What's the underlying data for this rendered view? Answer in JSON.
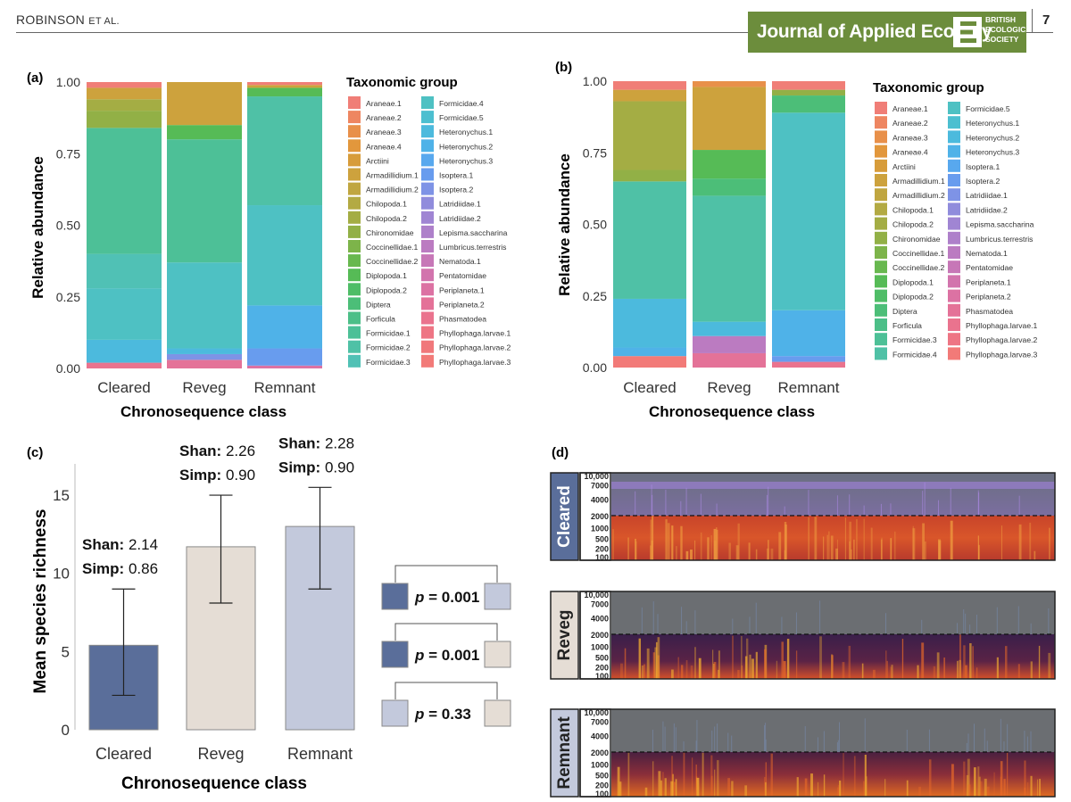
{
  "header": {
    "author_main": "ROBINSON",
    "author_suffix": "ET AL.",
    "journal": "Journal of Applied Ecology",
    "society_lines": [
      "BRITISH",
      "ECOLOGICAL",
      "SOCIETY"
    ],
    "page_number": "7"
  },
  "colors": {
    "cleared": "#5a6e9a",
    "reveg": "#e5ddd5",
    "remnant": "#c3c9dc",
    "journal_green": "#6c8d3c"
  },
  "chart_data": [
    {
      "panel": "(a)",
      "type": "bar",
      "stacked": true,
      "categories": [
        "Cleared",
        "Reveg",
        "Remnant"
      ],
      "xlabel": "Chronosequence class",
      "ylabel": "Relative abundance",
      "ylim": [
        0,
        1
      ],
      "yticks": [
        "0.00",
        "0.25",
        "0.50",
        "0.75",
        "1.00"
      ],
      "legend_title": "Taxonomic group",
      "legend": [
        {
          "name": "Araneae.1",
          "color": "#f07e77"
        },
        {
          "name": "Araneae.2",
          "color": "#ee8661"
        },
        {
          "name": "Araneae.3",
          "color": "#e8904a"
        },
        {
          "name": "Araneae.4",
          "color": "#e2973c"
        },
        {
          "name": "Arctiini",
          "color": "#d79c3a"
        },
        {
          "name": "Armadillidium.1",
          "color": "#cda23d"
        },
        {
          "name": "Armadillidium.2",
          "color": "#c0a640"
        },
        {
          "name": "Chilopoda.1",
          "color": "#b3aa43"
        },
        {
          "name": "Chilopoda.2",
          "color": "#a4ad44"
        },
        {
          "name": "Chironomidae",
          "color": "#92b046"
        },
        {
          "name": "Coccinellidae.1",
          "color": "#7db44a"
        },
        {
          "name": "Coccinellidae.2",
          "color": "#68b84f"
        },
        {
          "name": "Diplopoda.1",
          "color": "#56bb56"
        },
        {
          "name": "Diplopoda.2",
          "color": "#4fbd67"
        },
        {
          "name": "Diptera",
          "color": "#4cbe78"
        },
        {
          "name": "Forficula",
          "color": "#4cbf88"
        },
        {
          "name": "Formicidae.1",
          "color": "#4dc097"
        },
        {
          "name": "Formicidae.2",
          "color": "#4fc1a6"
        },
        {
          "name": "Formicidae.3",
          "color": "#50c1b5"
        },
        {
          "name": "Formicidae.4",
          "color": "#4ec1c3"
        },
        {
          "name": "Formicidae.5",
          "color": "#4cbfd0"
        },
        {
          "name": "Heteronychus.1",
          "color": "#4cbadd"
        },
        {
          "name": "Heteronychus.2",
          "color": "#4fb2e8"
        },
        {
          "name": "Heteronychus.3",
          "color": "#58a8ee"
        },
        {
          "name": "Isoptera.1",
          "color": "#689cee"
        },
        {
          "name": "Isoptera.2",
          "color": "#7e93e6"
        },
        {
          "name": "Latridiidae.1",
          "color": "#908cdc"
        },
        {
          "name": "Latridiidae.2",
          "color": "#a085d3"
        },
        {
          "name": "Lepisma.saccharina",
          "color": "#ae80ca"
        },
        {
          "name": "Lumbricus.terrestris",
          "color": "#bb7bc1"
        },
        {
          "name": "Nematoda.1",
          "color": "#c777b7"
        },
        {
          "name": "Pentatomidae",
          "color": "#d274ad"
        },
        {
          "name": "Periplaneta.1",
          "color": "#dc72a3"
        },
        {
          "name": "Periplaneta.2",
          "color": "#e47298"
        },
        {
          "name": "Phasmatodea",
          "color": "#ea738e"
        },
        {
          "name": "Phyllophaga.larvae.1",
          "color": "#ee7584"
        },
        {
          "name": "Phyllophaga.larvae.2",
          "color": "#f0787b"
        },
        {
          "name": "Phyllophaga.larvae.3",
          "color": "#f27a78"
        }
      ],
      "stacks": [
        [
          {
            "color": "#ea738e",
            "value": 0.02
          },
          {
            "color": "#4cbadd",
            "value": 0.08
          },
          {
            "color": "#4ec1c3",
            "value": 0.18
          },
          {
            "color": "#50c1b5",
            "value": 0.12
          },
          {
            "color": "#4dc097",
            "value": 0.44
          },
          {
            "color": "#92b046",
            "value": 0.06
          },
          {
            "color": "#a4ad44",
            "value": 0.04
          },
          {
            "color": "#cda23d",
            "value": 0.04
          },
          {
            "color": "#f07e77",
            "value": 0.02
          }
        ],
        [
          {
            "color": "#e47298",
            "value": 0.03
          },
          {
            "color": "#7e93e6",
            "value": 0.02
          },
          {
            "color": "#4cbadd",
            "value": 0.02
          },
          {
            "color": "#4ec1c3",
            "value": 0.3
          },
          {
            "color": "#4dc097",
            "value": 0.43
          },
          {
            "color": "#56bb56",
            "value": 0.05
          },
          {
            "color": "#cda23d",
            "value": 0.15
          }
        ],
        [
          {
            "color": "#dc72a3",
            "value": 0.01
          },
          {
            "color": "#689cee",
            "value": 0.06
          },
          {
            "color": "#4fb2e8",
            "value": 0.15
          },
          {
            "color": "#4ec1c3",
            "value": 0.35
          },
          {
            "color": "#4fc1a6",
            "value": 0.38
          },
          {
            "color": "#56bb56",
            "value": 0.03
          },
          {
            "color": "#cda23d",
            "value": 0.01
          },
          {
            "color": "#f07e77",
            "value": 0.01
          }
        ]
      ]
    },
    {
      "panel": "(b)",
      "type": "bar",
      "stacked": true,
      "categories": [
        "Cleared",
        "Reveg",
        "Remnant"
      ],
      "xlabel": "Chronosequence class",
      "ylabel": "Relative abundance",
      "ylim": [
        0,
        1
      ],
      "yticks": [
        "0.00",
        "0.25",
        "0.50",
        "0.75",
        "1.00"
      ],
      "legend_title": "Taxonomic group",
      "legend": [
        {
          "name": "Araneae.1",
          "color": "#f07e77"
        },
        {
          "name": "Araneae.2",
          "color": "#ee8661"
        },
        {
          "name": "Araneae.3",
          "color": "#e8904a"
        },
        {
          "name": "Araneae.4",
          "color": "#e2973c"
        },
        {
          "name": "Arctiini",
          "color": "#d79c3a"
        },
        {
          "name": "Armadillidium.1",
          "color": "#cda23d"
        },
        {
          "name": "Armadillidium.2",
          "color": "#c0a640"
        },
        {
          "name": "Chilopoda.1",
          "color": "#b3aa43"
        },
        {
          "name": "Chilopoda.2",
          "color": "#a4ad44"
        },
        {
          "name": "Chironomidae",
          "color": "#92b046"
        },
        {
          "name": "Coccinellidae.1",
          "color": "#7db44a"
        },
        {
          "name": "Coccinellidae.2",
          "color": "#68b84f"
        },
        {
          "name": "Diplopoda.1",
          "color": "#56bb56"
        },
        {
          "name": "Diplopoda.2",
          "color": "#4fbd67"
        },
        {
          "name": "Diptera",
          "color": "#4cbe78"
        },
        {
          "name": "Forficula",
          "color": "#4cbf88"
        },
        {
          "name": "Formicidae.3",
          "color": "#4dc097"
        },
        {
          "name": "Formicidae.4",
          "color": "#4fc1a6"
        },
        {
          "name": "Formicidae.5",
          "color": "#4ec1c3"
        },
        {
          "name": "Heteronychus.1",
          "color": "#4cbfd0"
        },
        {
          "name": "Heteronychus.2",
          "color": "#4cbadd"
        },
        {
          "name": "Heteronychus.3",
          "color": "#4fb2e8"
        },
        {
          "name": "Isoptera.1",
          "color": "#58a8ee"
        },
        {
          "name": "Isoptera.2",
          "color": "#689cee"
        },
        {
          "name": "Latridiidae.1",
          "color": "#7e93e6"
        },
        {
          "name": "Latridiidae.2",
          "color": "#908cdc"
        },
        {
          "name": "Lepisma.saccharina",
          "color": "#a085d3"
        },
        {
          "name": "Lumbricus.terrestris",
          "color": "#ae80ca"
        },
        {
          "name": "Nematoda.1",
          "color": "#bb7bc1"
        },
        {
          "name": "Pentatomidae",
          "color": "#c777b7"
        },
        {
          "name": "Periplaneta.1",
          "color": "#d274ad"
        },
        {
          "name": "Periplaneta.2",
          "color": "#dc72a3"
        },
        {
          "name": "Phasmatodea",
          "color": "#e47298"
        },
        {
          "name": "Phyllophaga.larvae.1",
          "color": "#ea738e"
        },
        {
          "name": "Phyllophaga.larvae.2",
          "color": "#ee7584"
        },
        {
          "name": "Phyllophaga.larvae.3",
          "color": "#f27a78"
        }
      ],
      "stacks": [
        [
          {
            "color": "#f27a78",
            "value": 0.04
          },
          {
            "color": "#4fb2e8",
            "value": 0.03
          },
          {
            "color": "#4cbadd",
            "value": 0.17
          },
          {
            "color": "#4fc1a6",
            "value": 0.41
          },
          {
            "color": "#92b046",
            "value": 0.04
          },
          {
            "color": "#a4ad44",
            "value": 0.24
          },
          {
            "color": "#cda23d",
            "value": 0.04
          },
          {
            "color": "#f07e77",
            "value": 0.03
          }
        ],
        [
          {
            "color": "#e47298",
            "value": 0.05
          },
          {
            "color": "#bb7bc1",
            "value": 0.06
          },
          {
            "color": "#4cbadd",
            "value": 0.05
          },
          {
            "color": "#4fc1a6",
            "value": 0.44
          },
          {
            "color": "#4cbe78",
            "value": 0.06
          },
          {
            "color": "#56bb56",
            "value": 0.1
          },
          {
            "color": "#cda23d",
            "value": 0.22
          },
          {
            "color": "#e8904a",
            "value": 0.02
          }
        ],
        [
          {
            "color": "#ea738e",
            "value": 0.02
          },
          {
            "color": "#689cee",
            "value": 0.02
          },
          {
            "color": "#4fb2e8",
            "value": 0.16
          },
          {
            "color": "#4ec1c3",
            "value": 0.69
          },
          {
            "color": "#4cbe78",
            "value": 0.06
          },
          {
            "color": "#92b046",
            "value": 0.02
          },
          {
            "color": "#f07e77",
            "value": 0.03
          }
        ]
      ]
    },
    {
      "panel": "(c)",
      "type": "bar",
      "categories": [
        "Cleared",
        "Reveg",
        "Remnant"
      ],
      "values": [
        5.4,
        11.7,
        13.0
      ],
      "error_low": [
        2.2,
        8.1,
        9.0
      ],
      "error_high": [
        9.0,
        15.0,
        15.5
      ],
      "xlabel": "Chronosequence class",
      "ylabel": "Mean species richness",
      "ylim": [
        0,
        17
      ],
      "yticks": [
        "0",
        "5",
        "10",
        "15"
      ],
      "annotations": [
        {
          "shan_label": "Shan:",
          "shan": "2.14",
          "simp_label": "Simp:",
          "simp": "0.86"
        },
        {
          "shan_label": "Shan:",
          "shan": "2.26",
          "simp_label": "Simp:",
          "simp": "0.90"
        },
        {
          "shan_label": "Shan:",
          "shan": "2.28",
          "simp_label": "Simp:",
          "simp": "0.90"
        }
      ],
      "comparisons": [
        {
          "pair": [
            "Cleared",
            "Remnant"
          ],
          "p_label": "p",
          "p_value": "= 0.001"
        },
        {
          "pair": [
            "Cleared",
            "Reveg"
          ],
          "p_label": "p",
          "p_value": "= 0.001"
        },
        {
          "pair": [
            "Remnant",
            "Reveg"
          ],
          "p_label": "p",
          "p_value": "= 0.33"
        }
      ]
    },
    {
      "panel": "(d)",
      "type": "heatmap",
      "subtype": "spectrogram",
      "panels": [
        "Cleared",
        "Reveg",
        "Remnant"
      ],
      "yticks": [
        "10,000",
        "7000",
        "4000",
        "2000",
        "1000",
        "500",
        "200",
        "100"
      ],
      "threshold": "2000"
    }
  ]
}
